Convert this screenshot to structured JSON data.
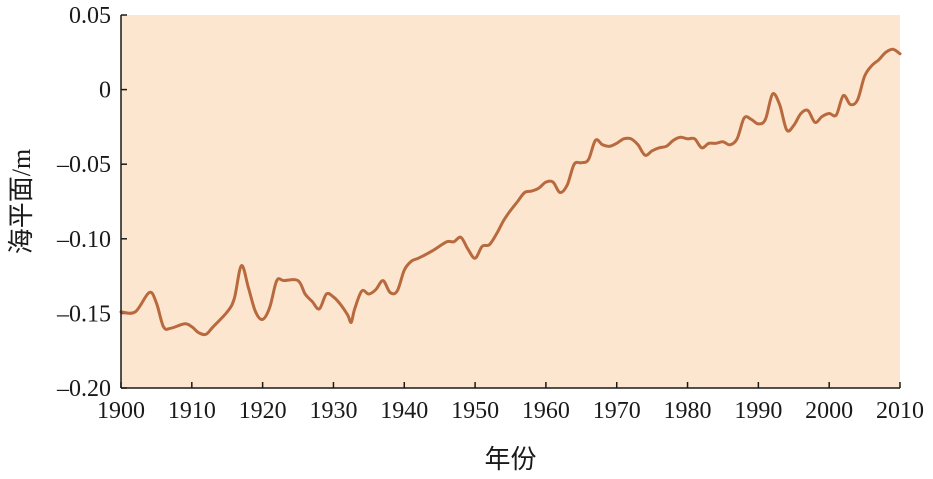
{
  "chart_data": {
    "type": "line",
    "title": "",
    "xlabel": "年份",
    "ylabel": "海平面/m",
    "xlim": [
      1900,
      2010
    ],
    "ylim": [
      -0.2,
      0.05
    ],
    "x_ticks": [
      1900,
      1910,
      1920,
      1930,
      1940,
      1950,
      1960,
      1970,
      1980,
      1990,
      2000,
      2010
    ],
    "y_ticks": [
      0.05,
      0,
      -0.05,
      -0.1,
      -0.15,
      -0.2
    ],
    "x_tick_labels": [
      "1900",
      "1910",
      "1920",
      "1930",
      "1940",
      "1950",
      "1960",
      "1970",
      "1980",
      "1990",
      "2000",
      "2010"
    ],
    "y_tick_labels": [
      "0.05",
      "0",
      "–0.05",
      "–0.10",
      "–0.15",
      "–0.20"
    ],
    "plot_background": "#fce6cf",
    "line_color": "#b86a3e",
    "grid": false,
    "series": [
      {
        "x": [
          1900,
          1902,
          1904,
          1905,
          1906,
          1907,
          1909,
          1910,
          1911,
          1912,
          1913,
          1915,
          1916,
          1917,
          1918,
          1919,
          1920,
          1921,
          1922,
          1923,
          1925,
          1926,
          1927,
          1928,
          1929,
          1930,
          1931,
          1932,
          1932.5,
          1933,
          1934,
          1935,
          1936,
          1937,
          1938,
          1939,
          1940,
          1941,
          1942,
          1944,
          1946,
          1947,
          1948,
          1949,
          1950,
          1951,
          1952,
          1953,
          1954,
          1955,
          1956,
          1957,
          1958,
          1959,
          1960,
          1961,
          1962,
          1963,
          1964,
          1965,
          1966,
          1967,
          1968,
          1969,
          1970,
          1971,
          1972,
          1973,
          1974,
          1975,
          1976,
          1977,
          1978,
          1979,
          1980,
          1981,
          1982,
          1983,
          1984,
          1985,
          1986,
          1987,
          1988,
          1989,
          1990,
          1991,
          1992,
          1993,
          1994,
          1995,
          1996,
          1997,
          1998,
          1999,
          2000,
          2001,
          2002,
          2003,
          2004,
          2005,
          2006,
          2007,
          2008,
          2009,
          2010
        ],
        "values": [
          -0.149,
          -0.149,
          -0.136,
          -0.143,
          -0.159,
          -0.16,
          -0.157,
          -0.159,
          -0.163,
          -0.164,
          -0.159,
          -0.149,
          -0.14,
          -0.118,
          -0.133,
          -0.149,
          -0.154,
          -0.146,
          -0.128,
          -0.128,
          -0.128,
          -0.137,
          -0.142,
          -0.147,
          -0.137,
          -0.139,
          -0.144,
          -0.151,
          -0.156,
          -0.147,
          -0.135,
          -0.137,
          -0.134,
          -0.128,
          -0.136,
          -0.135,
          -0.121,
          -0.115,
          -0.113,
          -0.108,
          -0.102,
          -0.102,
          -0.099,
          -0.107,
          -0.113,
          -0.105,
          -0.104,
          -0.097,
          -0.088,
          -0.081,
          -0.075,
          -0.069,
          -0.068,
          -0.066,
          -0.062,
          -0.062,
          -0.069,
          -0.064,
          -0.05,
          -0.049,
          -0.047,
          -0.034,
          -0.037,
          -0.038,
          -0.036,
          -0.033,
          -0.033,
          -0.037,
          -0.044,
          -0.041,
          -0.039,
          -0.038,
          -0.034,
          -0.032,
          -0.033,
          -0.033,
          -0.039,
          -0.036,
          -0.036,
          -0.035,
          -0.037,
          -0.033,
          -0.019,
          -0.02,
          -0.023,
          -0.02,
          -0.003,
          -0.01,
          -0.027,
          -0.024,
          -0.016,
          -0.014,
          -0.022,
          -0.018,
          -0.016,
          -0.017,
          -0.004,
          -0.01,
          -0.007,
          0.009,
          0.016,
          0.02,
          0.025,
          0.027,
          0.024
        ]
      }
    ]
  }
}
